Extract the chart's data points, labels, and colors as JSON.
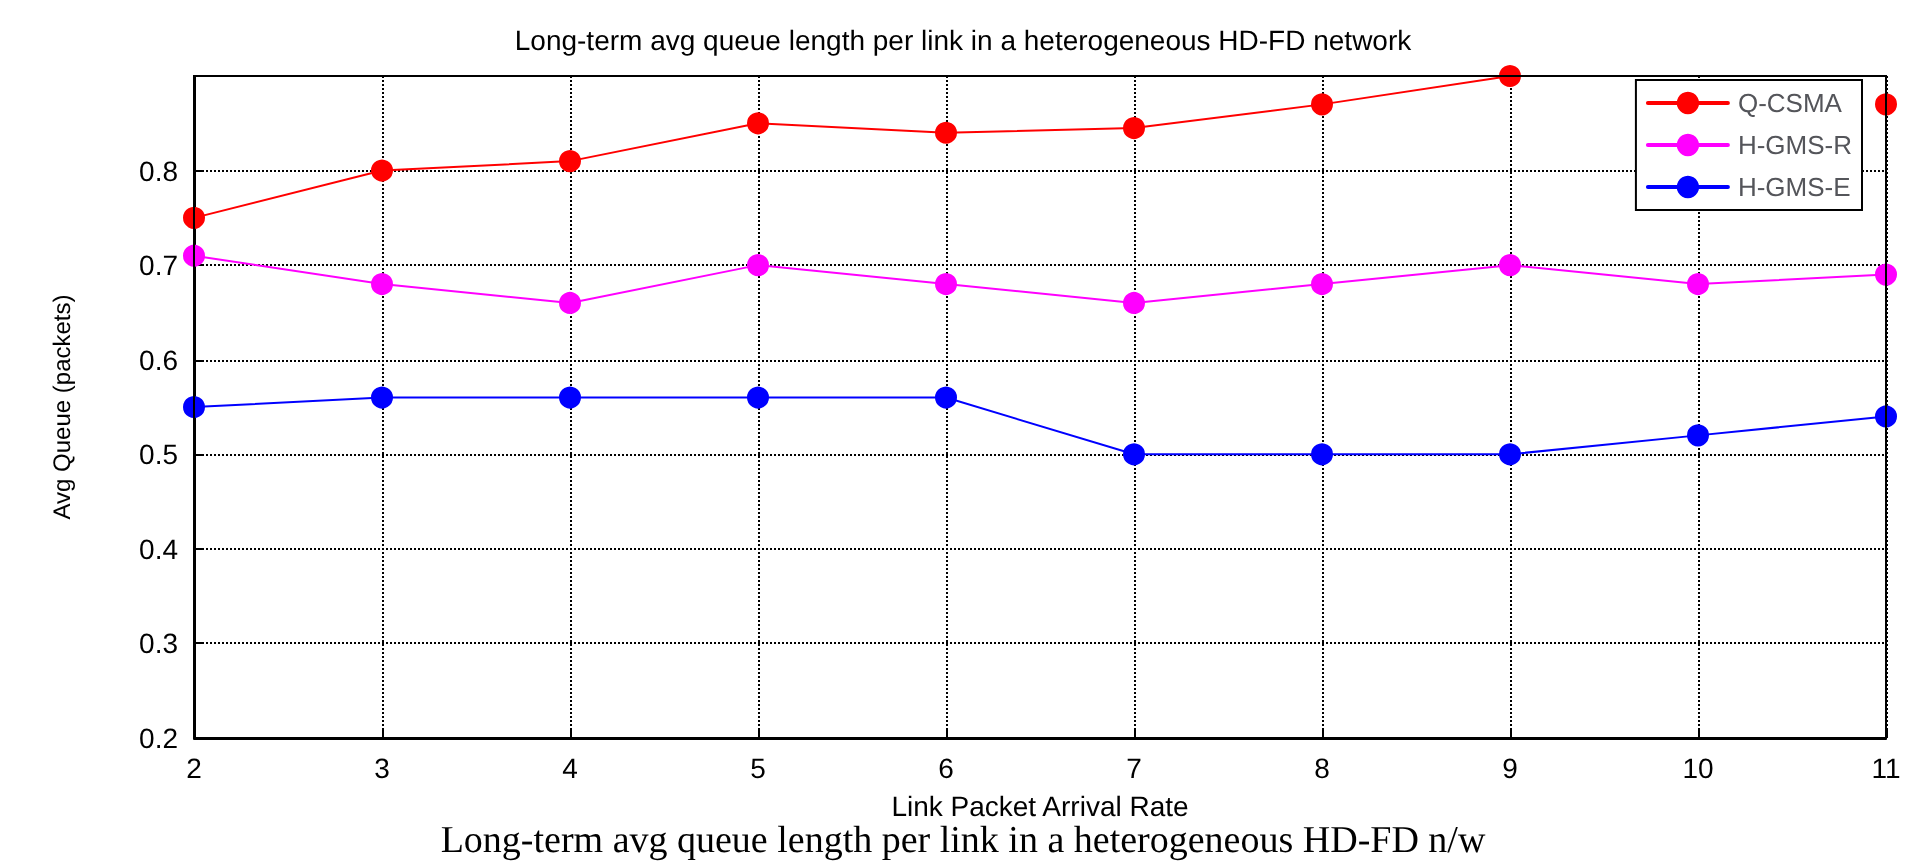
{
  "chart_data": {
    "type": "line",
    "title": "Long-term avg queue length per link in a heterogeneous HD-FD network",
    "xlabel": "Link Packet Arrival Rate",
    "ylabel": "Avg Queue (packets)",
    "annotations": [
      "Long-term avg queue length per link in a heterogeneous HD-FD n/w"
    ],
    "x": [
      2,
      3,
      4,
      5,
      6,
      7,
      8,
      9,
      10,
      11
    ],
    "series": [
      {
        "name": "Q-CSMA",
        "color": "#ff0000",
        "values": [
          0.75,
          0.8,
          0.81,
          0.85,
          0.84,
          0.845,
          0.87,
          0.9,
          null,
          0.87
        ]
      },
      {
        "name": "H-GMS-R",
        "color": "#ff00ff",
        "values": [
          0.71,
          0.68,
          0.66,
          0.7,
          0.68,
          0.66,
          0.68,
          0.7,
          0.68,
          0.69
        ]
      },
      {
        "name": "H-GMS-E",
        "color": "#0000ff",
        "values": [
          0.55,
          0.56,
          0.56,
          0.56,
          0.56,
          0.5,
          0.5,
          0.5,
          0.52,
          0.54
        ]
      }
    ],
    "xlim": [
      2,
      11
    ],
    "xticks": [
      2,
      3,
      4,
      5,
      6,
      7,
      8,
      9,
      10,
      11
    ],
    "ylim": [
      0.2,
      0.9
    ],
    "yticks": [
      0.2,
      0.3,
      0.4,
      0.5,
      0.6,
      0.7,
      0.8
    ],
    "grid": true,
    "legend": "top right",
    "marker": "circle",
    "line_style": "solid"
  }
}
